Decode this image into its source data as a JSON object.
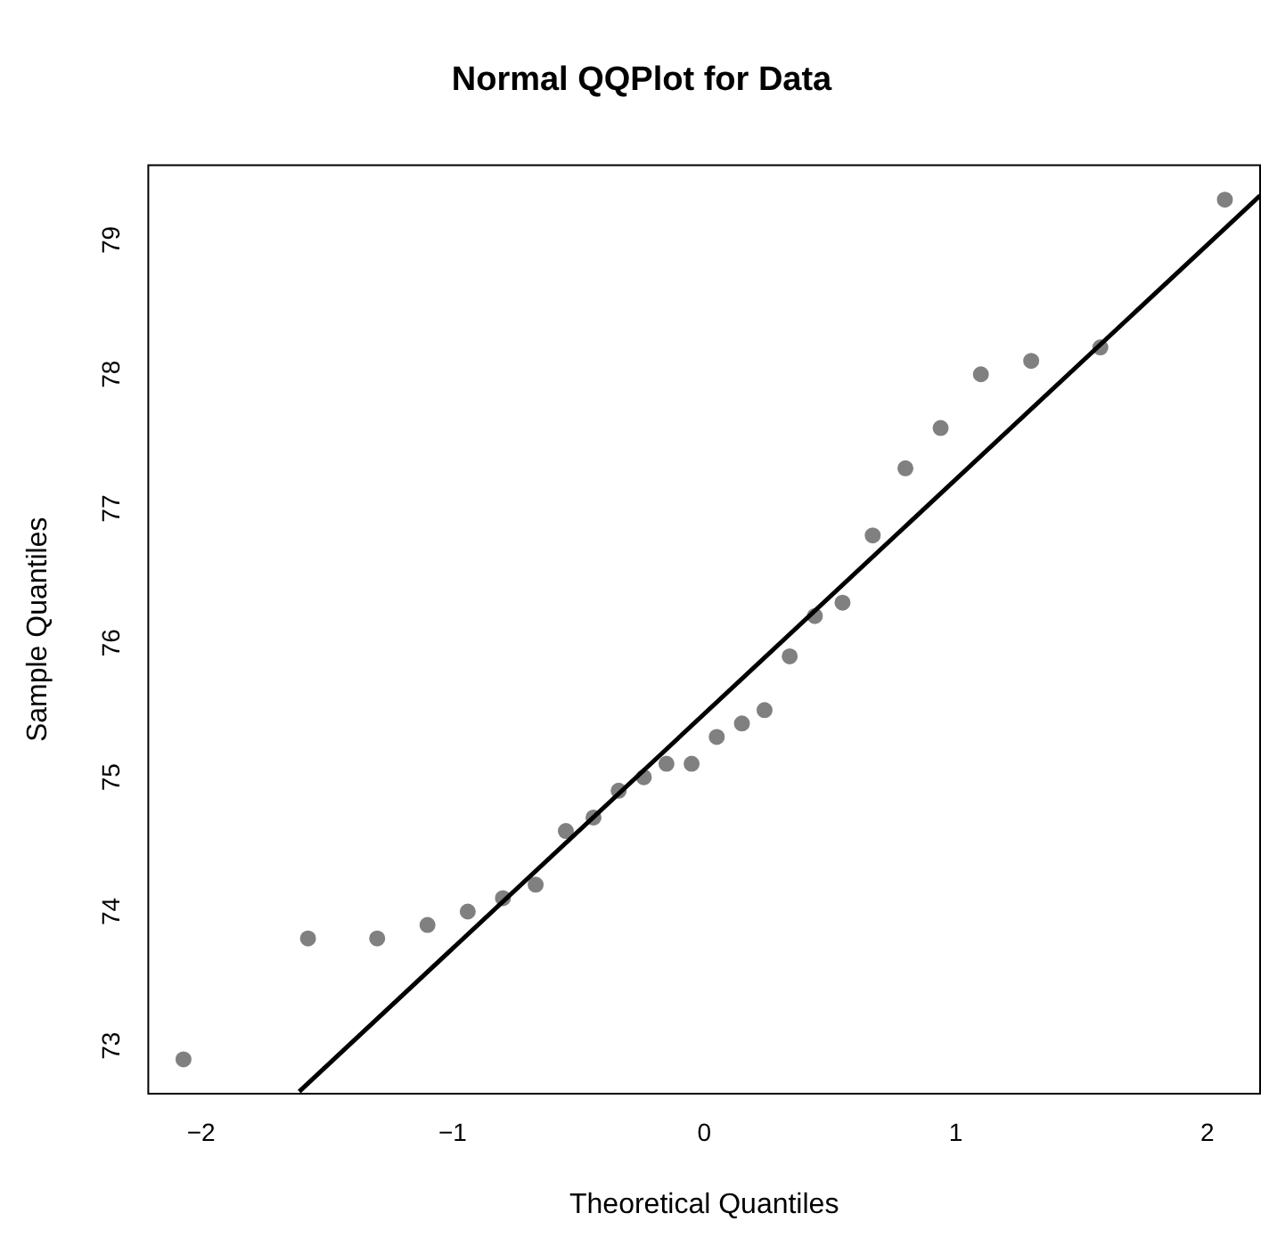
{
  "chart_data": {
    "type": "scatter",
    "title": "Normal QQPlot for Data",
    "xlabel": "Theoretical Quantiles",
    "ylabel": "Sample Quantiles",
    "x": [
      -2.07,
      -1.575,
      -1.3,
      -1.1,
      -0.94,
      -0.8,
      -0.67,
      -0.55,
      -0.44,
      -0.34,
      -0.24,
      -0.15,
      -0.05,
      0.05,
      0.15,
      0.24,
      0.34,
      0.44,
      0.55,
      0.67,
      0.8,
      0.94,
      1.1,
      1.3,
      1.575,
      2.07
    ],
    "series": [
      {
        "color": "#808080",
        "marker": "circle",
        "values": [
          72.9,
          73.8,
          73.8,
          73.9,
          74.0,
          74.1,
          74.2,
          74.6,
          74.7,
          74.9,
          75.0,
          75.1,
          75.1,
          75.3,
          75.4,
          75.5,
          75.9,
          76.2,
          76.3,
          76.8,
          77.3,
          77.6,
          78.0,
          78.1,
          78.2,
          79.3
        ]
      },
      {
        "type": "line",
        "color": "#000000",
        "marker": "none",
        "x": [
          -1.61,
          2.21
        ],
        "values": [
          72.66,
          79.33
        ]
      }
    ],
    "xlim": [
      -2.21,
      2.21
    ],
    "ylim": [
      72.644,
      79.556
    ],
    "xticks": [
      {
        "value": -2,
        "label": "−2"
      },
      {
        "value": -1,
        "label": "−1"
      },
      0,
      1,
      2
    ],
    "yticks": [
      73,
      74,
      75,
      76,
      77,
      78,
      79
    ],
    "grid": false,
    "legend": false
  }
}
